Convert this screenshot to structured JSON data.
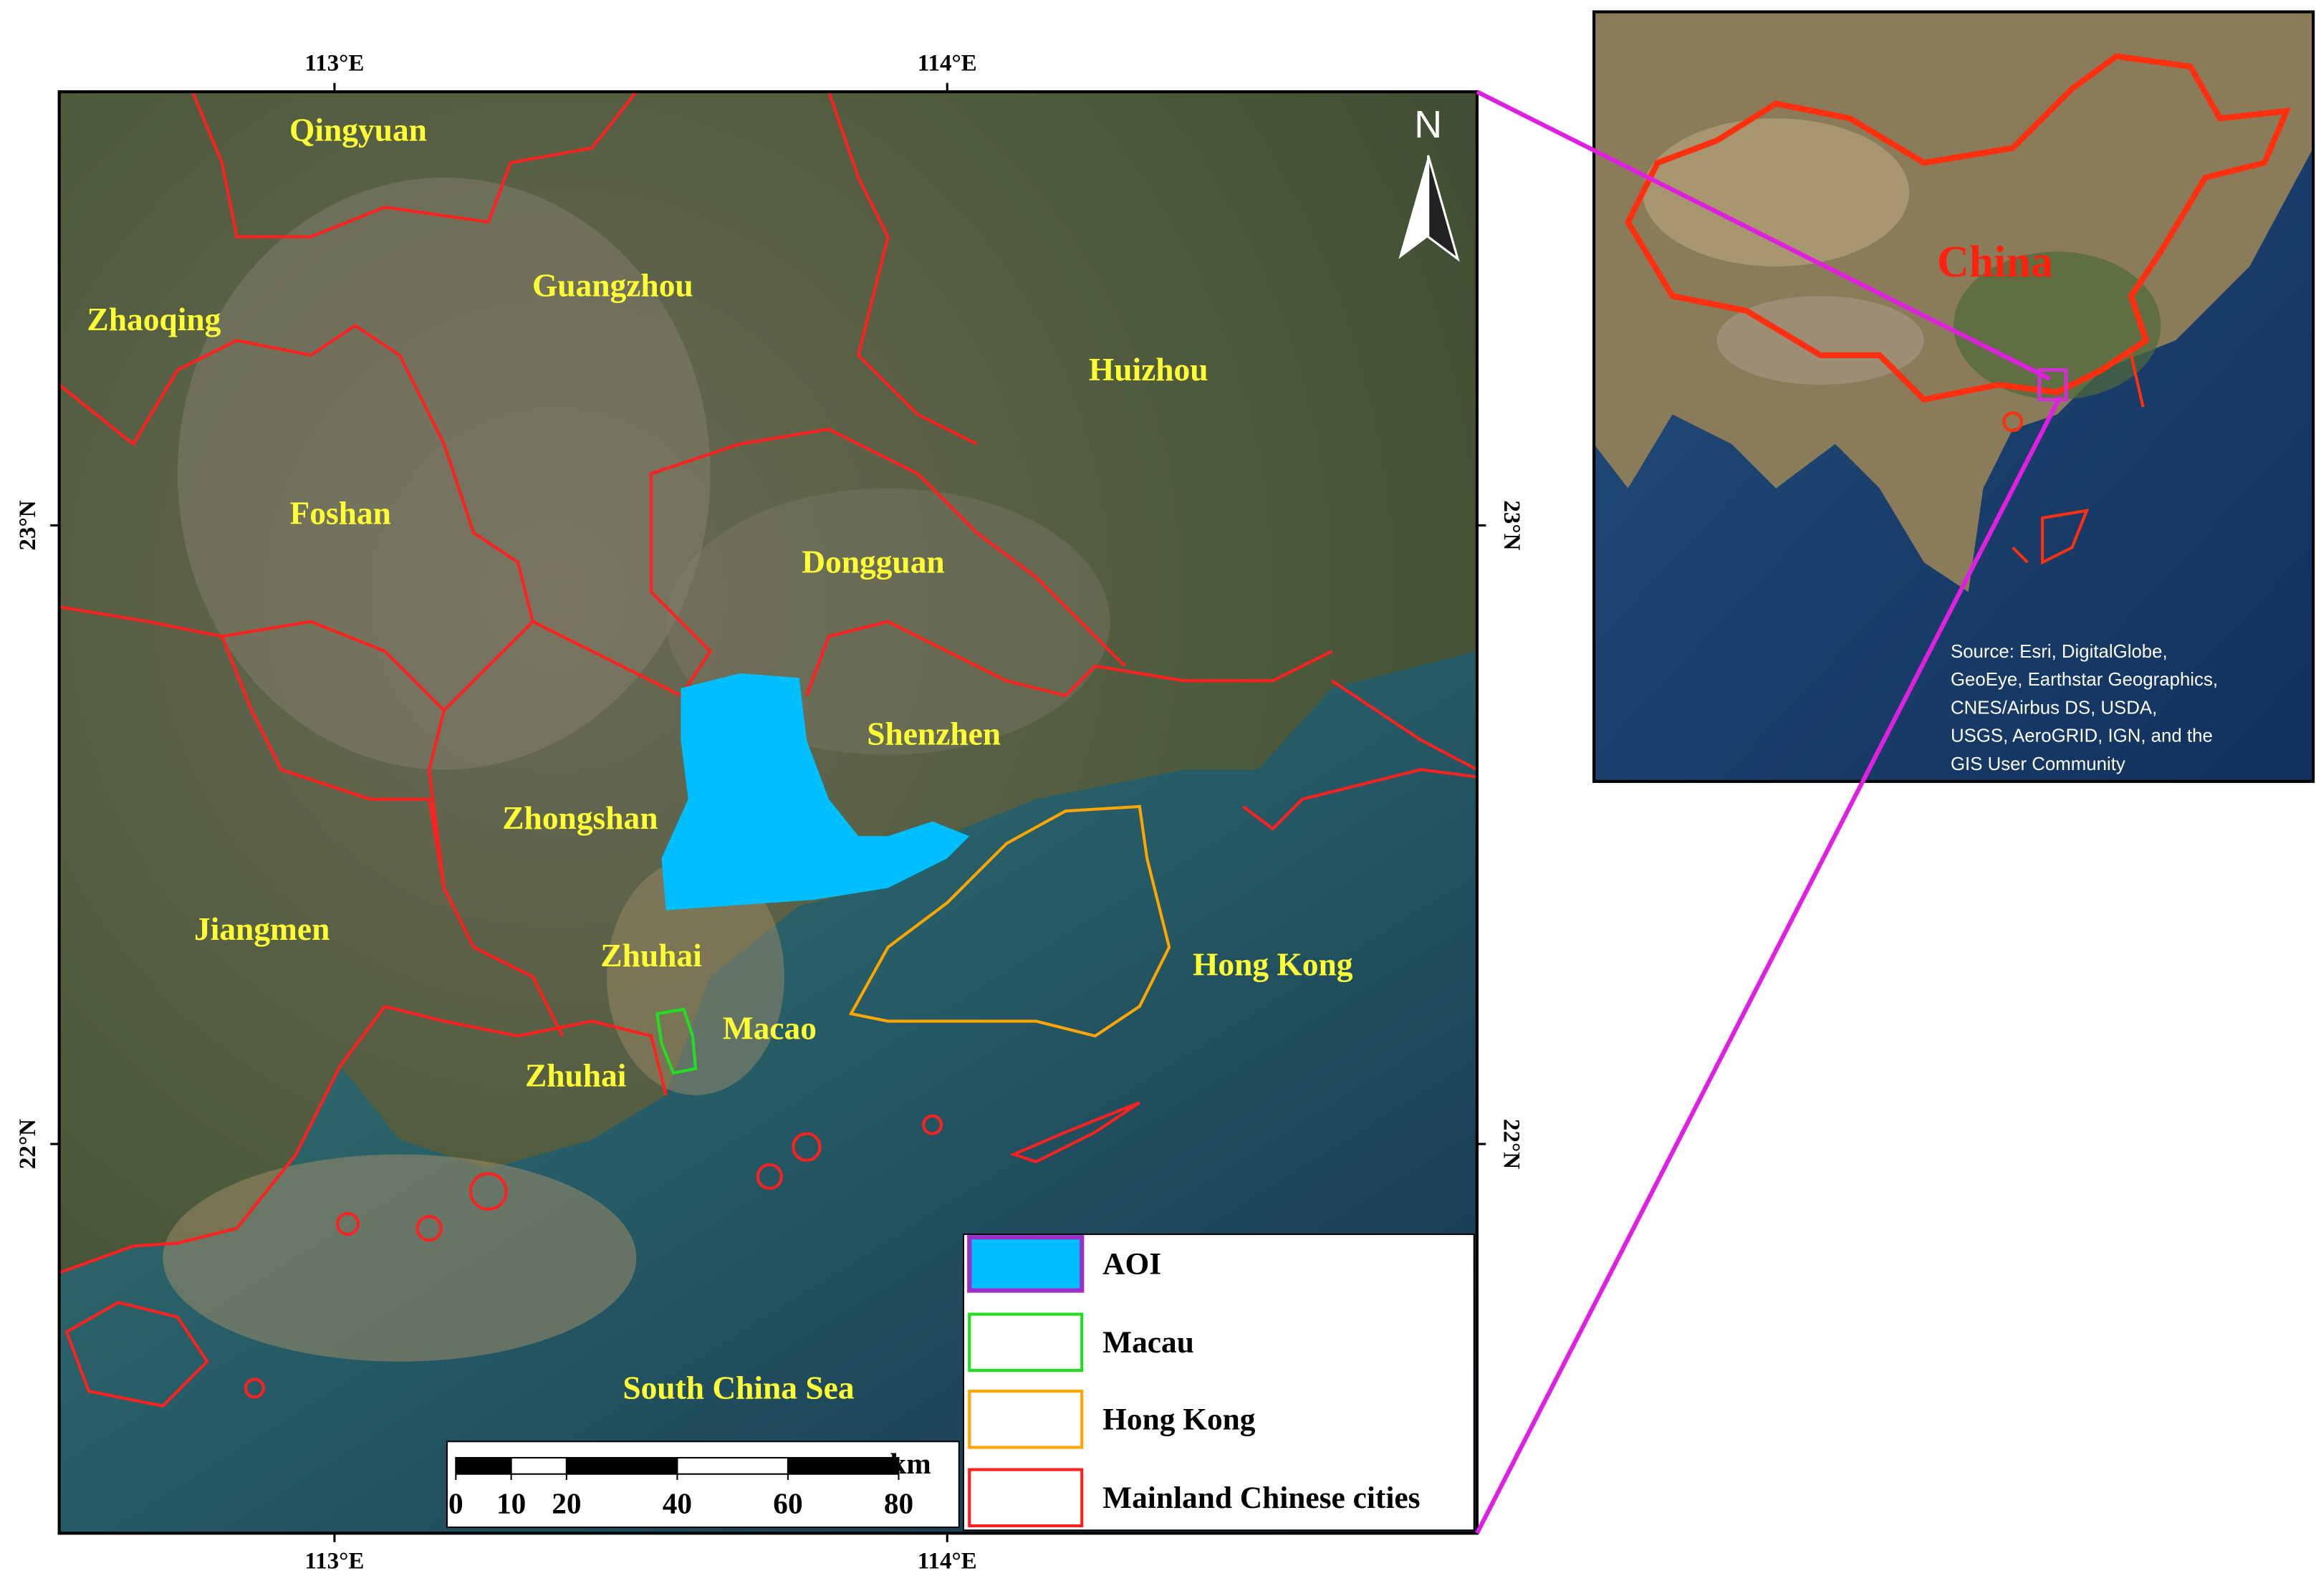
{
  "main_map": {
    "longitude_labels": [
      "113°E",
      "114°E"
    ],
    "latitude_labels": [
      "23°N",
      "22°N"
    ],
    "north_label": "N",
    "place_labels": [
      "Qingyuan",
      "Zhaoqing",
      "Guangzhou",
      "Huizhou",
      "Foshan",
      "Dongguan",
      "Shenzhen",
      "Zhongshan",
      "Jiangmen",
      "Zhuhai",
      "Macao",
      "Zhuhai",
      "Hong Kong",
      "South China Sea"
    ],
    "legend": [
      "AOI",
      "Macau",
      "Hong Kong",
      "Mainland Chinese cities"
    ],
    "scale_bar": {
      "unit": "km",
      "ticks": [
        0,
        10,
        20,
        40,
        60,
        80
      ]
    }
  },
  "inset_map": {
    "label": "China",
    "source": [
      "Source: Esri, DigitalGlobe,",
      "GeoEye, Earthstar Geographics,",
      "CNES/Airbus DS, USDA,",
      "USGS, AeroGRID, IGN, and the",
      "GIS User Community"
    ]
  }
}
